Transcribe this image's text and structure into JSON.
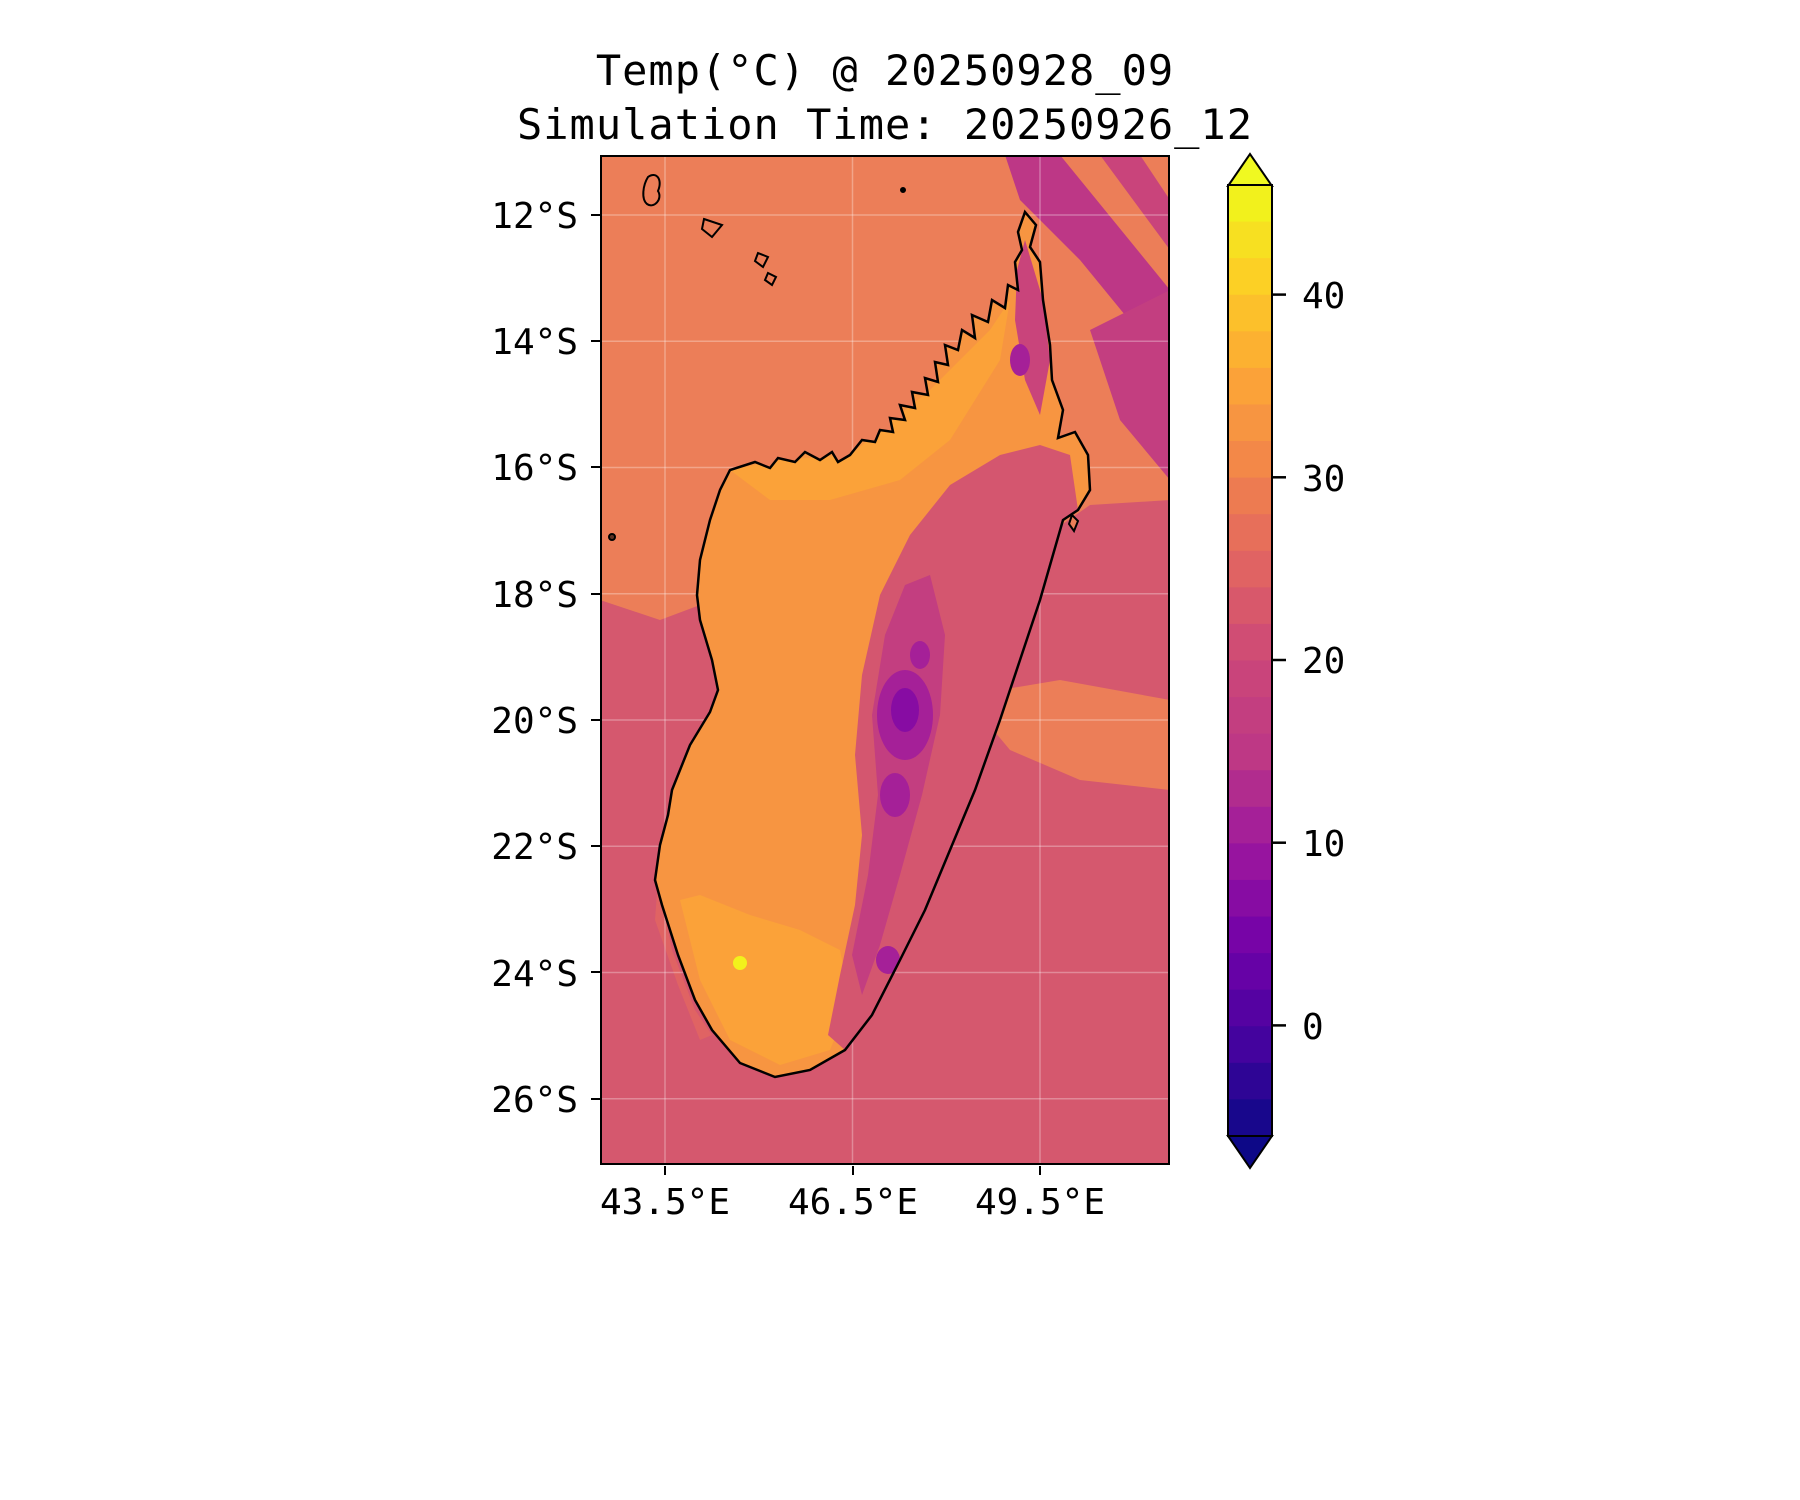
{
  "title": {
    "line1": "Temp(°C) @ 20250928_09",
    "line2": "Simulation Time: 20250926_12"
  },
  "axes": {
    "y_ticks": [
      {
        "label": "12°S"
      },
      {
        "label": "14°S"
      },
      {
        "label": "16°S"
      },
      {
        "label": "18°S"
      },
      {
        "label": "20°S"
      },
      {
        "label": "22°S"
      },
      {
        "label": "24°S"
      },
      {
        "label": "26°S"
      }
    ],
    "x_ticks": [
      {
        "label": "43.5°E"
      },
      {
        "label": "46.5°E"
      },
      {
        "label": "49.5°E"
      }
    ]
  },
  "colorbar": {
    "tick_labels": [
      {
        "label": "40"
      },
      {
        "label": "30"
      },
      {
        "label": "20"
      },
      {
        "label": "10"
      },
      {
        "label": "0"
      }
    ],
    "vmin": -6,
    "vmax": 46,
    "over_color": "#f0f921",
    "under_color": "#0d0887",
    "outline_color": "#000000",
    "level_colors_top_to_bottom": [
      "#f2f11c",
      "#f7e021",
      "#fcd025",
      "#fcc02b",
      "#fcb131",
      "#fba239",
      "#f79541",
      "#f38848",
      "#ed7b51",
      "#e76f5a",
      "#e06363",
      "#d8586b",
      "#d04d74",
      "#c9447b",
      "#c33e80",
      "#be3885",
      "#b12c8e",
      "#a52098",
      "#97149f",
      "#870ca3",
      "#7704a7",
      "#6602a6",
      "#5502a2",
      "#44039e",
      "#2e0595",
      "#18078c"
    ]
  },
  "map": {
    "coastline_color": "#000000",
    "gridline_color": "#ffffff",
    "colors": {
      "ocean_north": "#ec7e58",
      "ocean_south": "#d5586e",
      "ocean_streak_dark": "#bd3786",
      "ocean_streak_mid": "#c33e80",
      "ocean_streak_light": "#c9447b",
      "ocean_east_warm_patch": "#ec7e58",
      "ocean_sw_coastal": "#e06363",
      "land_base": "#f79541",
      "land_warm": "#fba239",
      "land_east_cool": "#d4566f",
      "land_ridge_magenta": "#c33e80",
      "land_ne_magenta": "#c9447b",
      "highland_purple": "#a52098",
      "highland_deep_purple": "#870ca3",
      "hot_spot_yellow": "#f2f11c"
    }
  },
  "chart_data": {
    "type": "heatmap",
    "variable": "Temp",
    "units": "°C",
    "valid_time": "20250928_09",
    "simulation_time": "20250926_12",
    "region": "Madagascar and surrounding ocean",
    "title": "Temp(°C) @ 20250928_09",
    "subtitle": "Simulation Time: 20250926_12",
    "x_axis": {
      "tick_values_deg_e": [
        43.5,
        46.5,
        49.5
      ],
      "range_deg_e": [
        42.5,
        51.6
      ]
    },
    "y_axis": {
      "tick_values_deg_s": [
        12,
        14,
        16,
        18,
        20,
        22,
        24,
        26
      ],
      "range_deg_s": [
        11.1,
        27.1
      ]
    },
    "colorbar": {
      "tick_values": [
        0,
        10,
        20,
        30,
        40
      ],
      "range": [
        -6,
        46
      ],
      "colormap": "plasma",
      "extend": "both",
      "contour_interval_c": 2
    },
    "grid": "faint graticule at tick latitudes/longitudes",
    "legend_position": "right vertical colorbar",
    "observed_values_approx_c": [
      {
        "area": "ocean north and northwest of Madagascar",
        "temp": 27
      },
      {
        "area": "ocean south and southeast of Madagascar",
        "temp": 22
      },
      {
        "area": "northeast ocean diagonal cool streaks",
        "temp": 16
      },
      {
        "area": "western lowlands of the island",
        "temp": 33
      },
      {
        "area": "southwest interior",
        "temp": 35
      },
      {
        "area": "central highlands purple patches",
        "temp": 12
      },
      {
        "area": "eastern escarpment band",
        "temp": 20
      },
      {
        "area": "small hot spot in southwest interior",
        "temp": 43
      },
      {
        "area": "warm ocean patch east of island near 20.5S",
        "temp": 28
      }
    ]
  }
}
